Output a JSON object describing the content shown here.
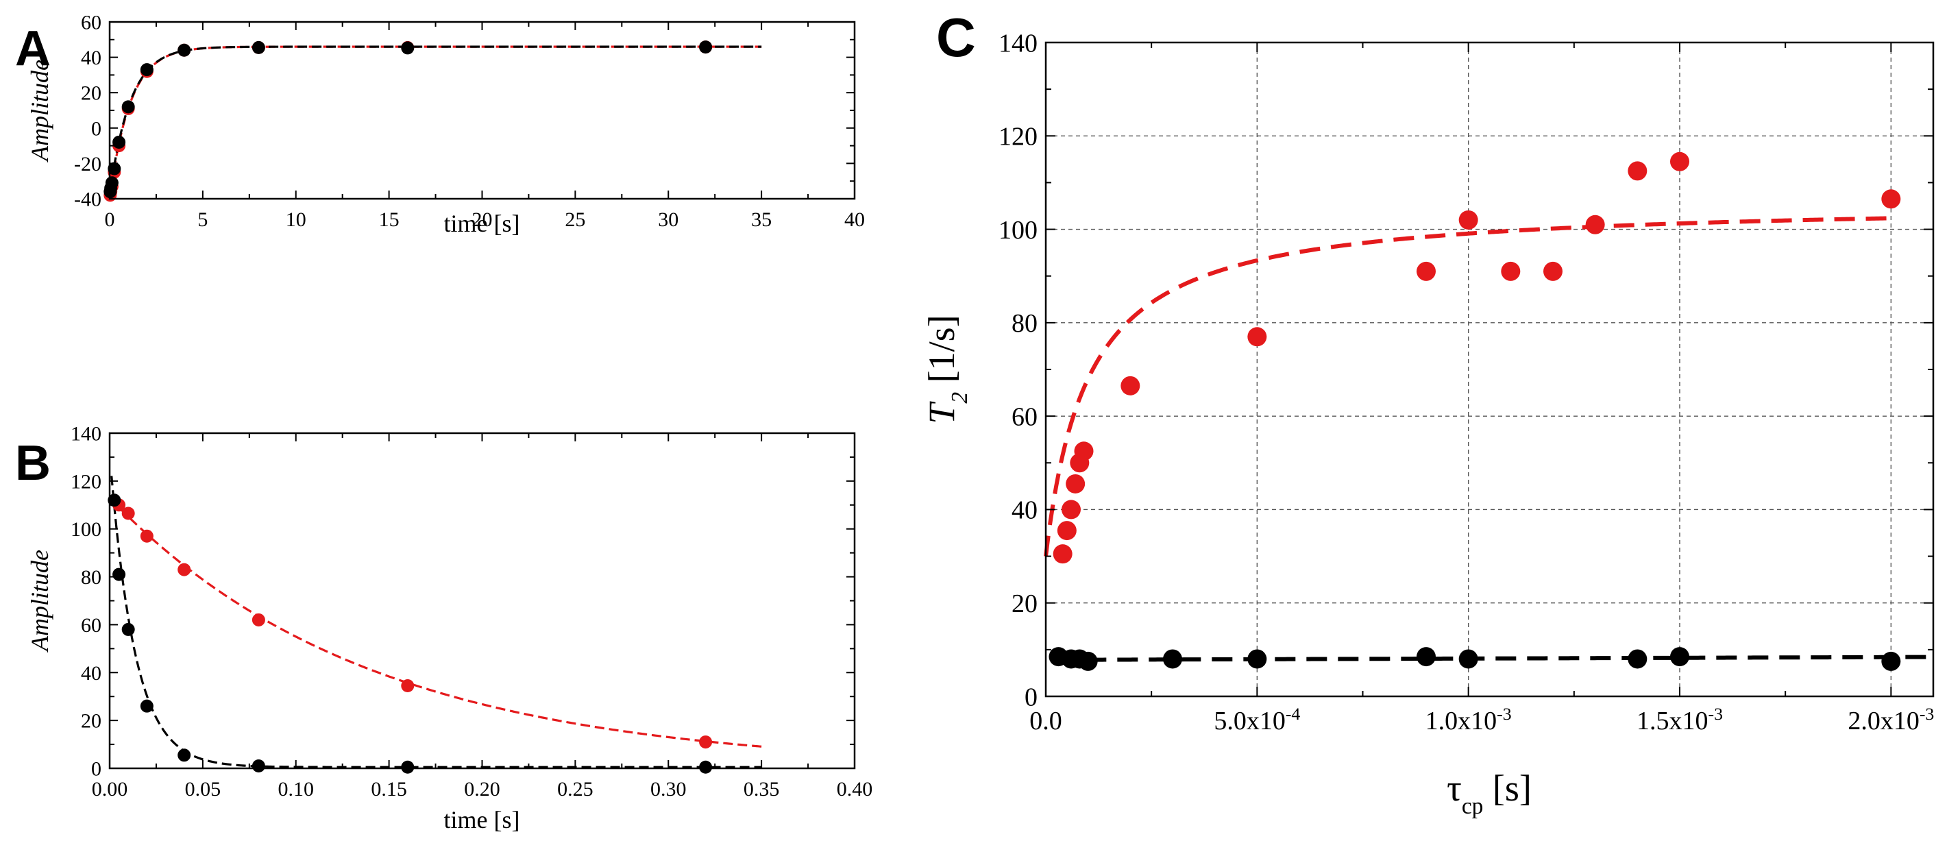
{
  "chart_data": [
    {
      "id": "A",
      "type": "scatter",
      "panel_label": "A",
      "xlabel": "time [s]",
      "ylabel": "Amplitude",
      "xlim": [
        0,
        40
      ],
      "ylim": [
        -40,
        60
      ],
      "xticks": [
        0,
        5,
        10,
        15,
        20,
        25,
        30,
        35,
        40
      ],
      "yticks": [
        -40,
        -20,
        0,
        20,
        40,
        60
      ],
      "xtick_labels": [
        "0",
        "5",
        "10",
        "15",
        "20",
        "25",
        "30",
        "35",
        "40"
      ],
      "ytick_labels": [
        "-40",
        "-20",
        "0",
        "20",
        "40",
        "60"
      ],
      "grid": false,
      "series": [
        {
          "name": "red",
          "color": "#e41a1c",
          "x": [
            0.03,
            0.06,
            0.125,
            0.25,
            0.5,
            1,
            2,
            4,
            8,
            16,
            32
          ],
          "y": [
            -38,
            -36,
            -33,
            -25,
            -10,
            11,
            32,
            44,
            45.5,
            45.5,
            45.8
          ]
        },
        {
          "name": "black",
          "color": "#000000",
          "x": [
            0.03,
            0.06,
            0.125,
            0.25,
            0.5,
            1,
            2,
            4,
            8,
            16,
            32
          ],
          "y": [
            -36,
            -34,
            -31,
            -23,
            -8,
            12,
            33,
            44,
            45.5,
            45.3,
            45.8
          ]
        }
      ],
      "fits": [
        {
          "name": "red-fit",
          "color": "#e41a1c",
          "model": "recovery",
          "a": 46,
          "b": 86,
          "r": 0.9,
          "x_range": [
            0,
            35
          ]
        },
        {
          "name": "black-fit",
          "color": "#000000",
          "model": "recovery",
          "a": 46,
          "b": 84,
          "r": 0.9,
          "x_range": [
            0,
            35
          ]
        }
      ]
    },
    {
      "id": "B",
      "type": "scatter",
      "panel_label": "B",
      "xlabel": "time [s]",
      "ylabel": "Amplitude",
      "xlim": [
        0,
        0.4
      ],
      "ylim": [
        0,
        140
      ],
      "xticks": [
        0,
        0.05,
        0.1,
        0.15,
        0.2,
        0.25,
        0.3,
        0.35,
        0.4
      ],
      "yticks": [
        0,
        20,
        40,
        60,
        80,
        100,
        120,
        140
      ],
      "xtick_labels": [
        "0.00",
        "0.05",
        "0.10",
        "0.15",
        "0.20",
        "0.25",
        "0.30",
        "0.35",
        "0.40"
      ],
      "ytick_labels": [
        "0",
        "20",
        "40",
        "60",
        "80",
        "100",
        "120",
        "140"
      ],
      "grid": false,
      "series": [
        {
          "name": "red",
          "color": "#e41a1c",
          "x": [
            0.005,
            0.01,
            0.02,
            0.04,
            0.08,
            0.16,
            0.32
          ],
          "y": [
            110,
            106.5,
            97,
            83,
            62,
            34.5,
            11
          ]
        },
        {
          "name": "black",
          "color": "#000000",
          "x": [
            0.0025,
            0.005,
            0.01,
            0.02,
            0.04,
            0.08,
            0.16,
            0.32
          ],
          "y": [
            112,
            81,
            58,
            26,
            5.5,
            1,
            0.5,
            0.5
          ]
        }
      ],
      "fits": [
        {
          "name": "red-fit",
          "color": "#e41a1c",
          "model": "decay",
          "a": 113,
          "r": 7.2,
          "c": 0,
          "x_range": [
            0,
            0.35
          ]
        },
        {
          "name": "black-fit",
          "color": "#000000",
          "model": "decay",
          "a": 131,
          "r": 74,
          "c": 0.5,
          "x_range": [
            0.001,
            0.35
          ]
        }
      ]
    },
    {
      "id": "C",
      "type": "scatter",
      "panel_label": "C",
      "xlabel": "τ",
      "xlabel_sub": "cp",
      "xlabel_suffix": " [s]",
      "ylabel": "T",
      "ylabel_sub": "2",
      "ylabel_suffix": " [1/s]",
      "xlim": [
        0,
        0.0021
      ],
      "ylim": [
        0,
        140
      ],
      "xticks": [
        0,
        0.0005,
        0.001,
        0.0015,
        0.002
      ],
      "yticks": [
        0,
        20,
        40,
        60,
        80,
        100,
        120,
        140
      ],
      "xtick_labels": [
        {
          "mant": "0.0",
          "exp": ""
        },
        {
          "mant": "5.0x10",
          "exp": "-4"
        },
        {
          "mant": "1.0x10",
          "exp": "-3"
        },
        {
          "mant": "1.5x10",
          "exp": "-3"
        },
        {
          "mant": "2.0x10",
          "exp": "-3"
        }
      ],
      "ytick_labels": [
        "0",
        "20",
        "40",
        "60",
        "80",
        "100",
        "120",
        "140"
      ],
      "grid": true,
      "series": [
        {
          "name": "red",
          "color": "#e41a1c",
          "x": [
            4e-05,
            5e-05,
            6e-05,
            7e-05,
            8e-05,
            9e-05,
            0.0002,
            0.0005,
            0.0009,
            0.001,
            0.0011,
            0.0012,
            0.0013,
            0.0014,
            0.0015,
            0.002
          ],
          "y": [
            30.5,
            35.5,
            40,
            45.5,
            50,
            52.5,
            66.5,
            77,
            91,
            102,
            91,
            91,
            101,
            112.5,
            114.5,
            106.5
          ]
        },
        {
          "name": "black",
          "color": "#000000",
          "x": [
            3e-05,
            6e-05,
            8e-05,
            0.0001,
            0.0003,
            0.0005,
            0.0009,
            0.001,
            0.0014,
            0.0015,
            0.002
          ],
          "y": [
            8.5,
            8,
            8,
            7.5,
            8,
            8,
            8.5,
            8,
            8,
            8.5,
            7.5
          ]
        }
      ],
      "fits": [
        {
          "name": "red-fit",
          "color": "#e41a1c",
          "model": "saturation",
          "r2_0": 30,
          "r2_inf": 106,
          "k": 0.0001,
          "x_range": [
            0,
            0.002
          ]
        },
        {
          "name": "black-fit",
          "color": "#000000",
          "model": "linear",
          "y0": 7.8,
          "slope": 300,
          "x_range": [
            2e-05,
            0.0021
          ]
        }
      ]
    }
  ]
}
